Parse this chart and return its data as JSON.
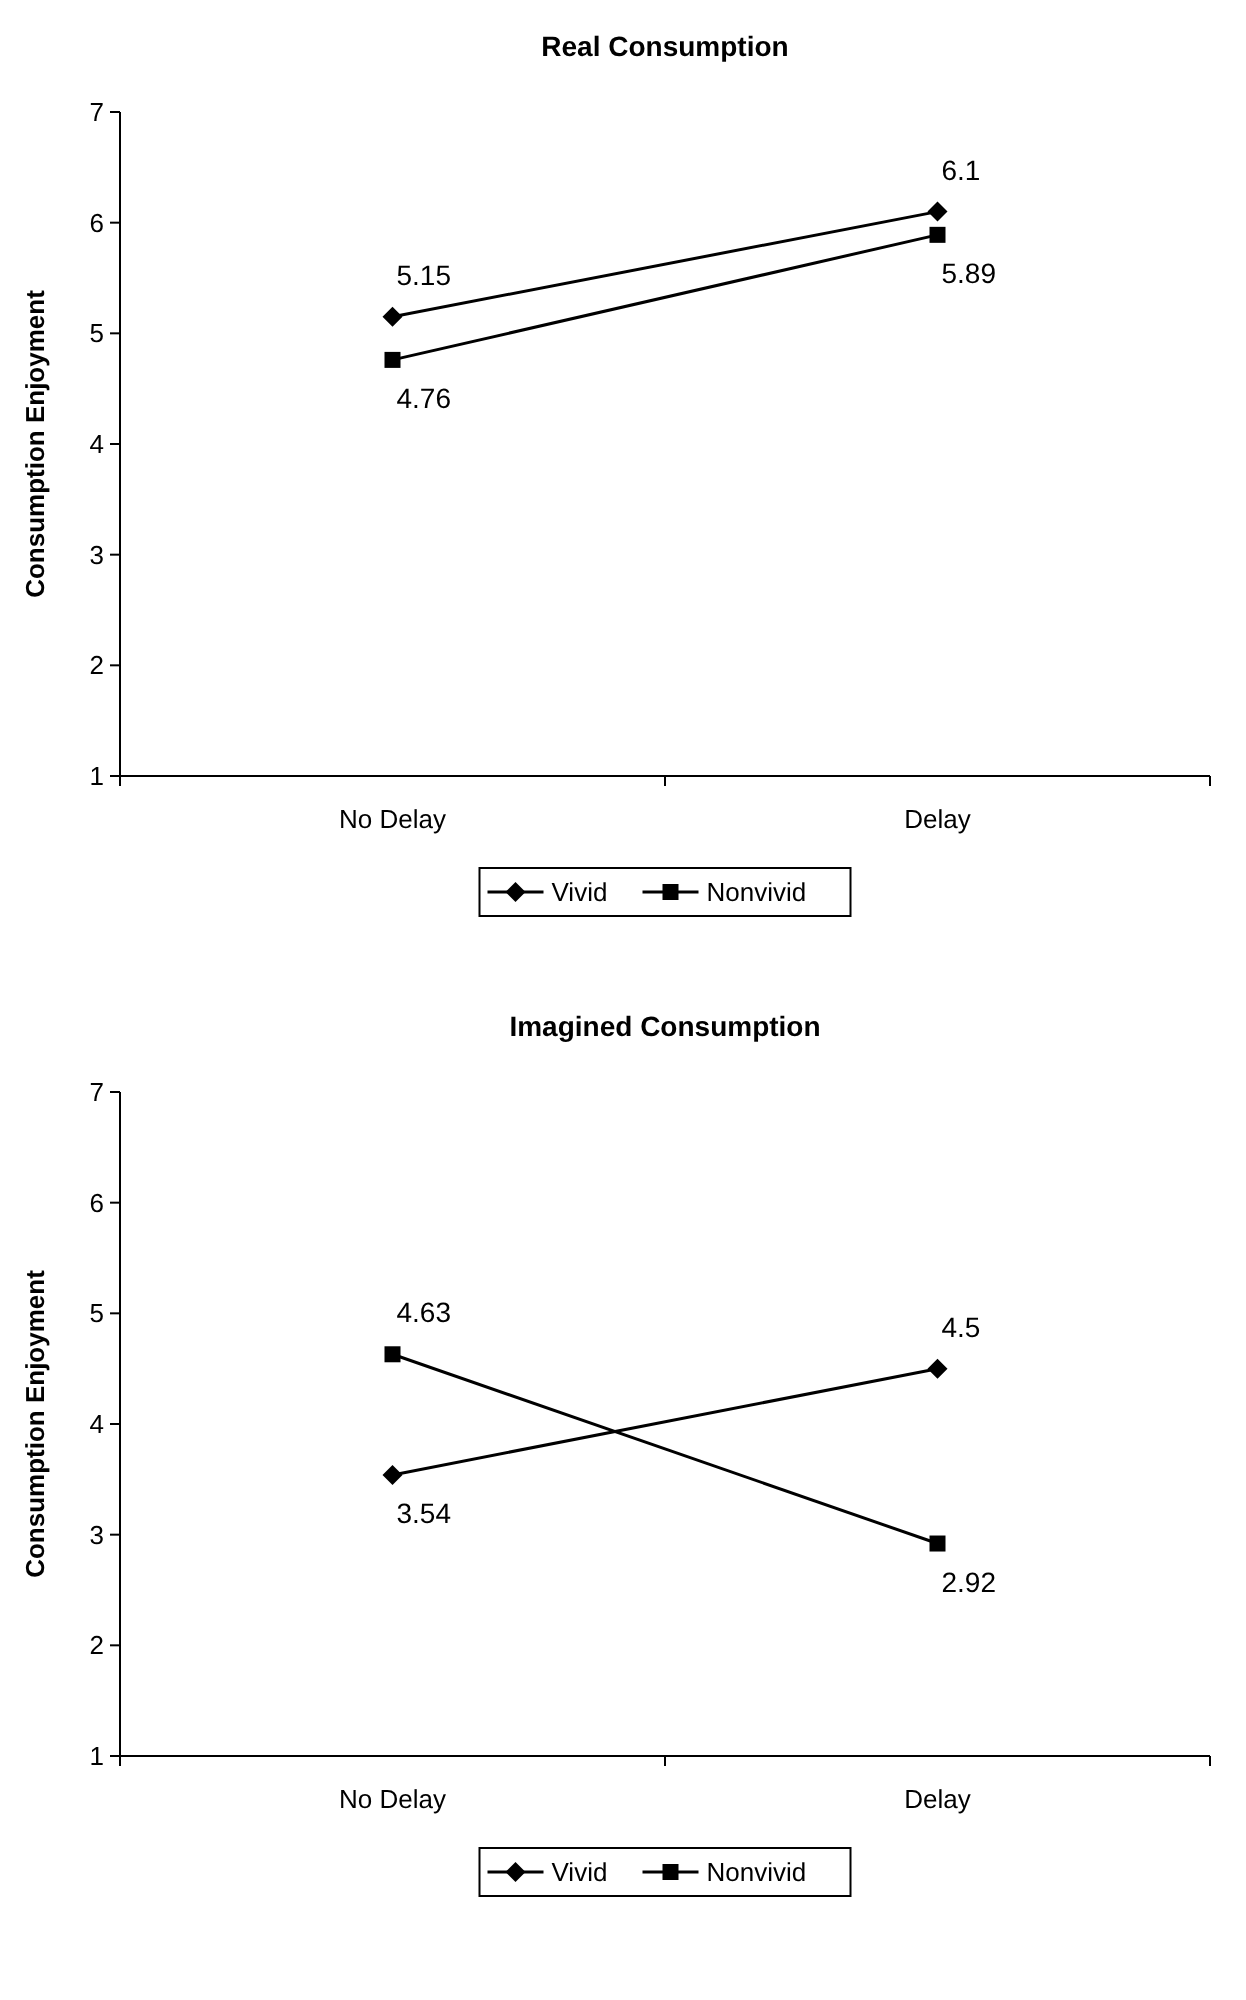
{
  "chart_data": [
    {
      "type": "line",
      "title": "Real Consumption",
      "ylabel": "Consumption Enjoyment",
      "categories": [
        "No Delay",
        "Delay"
      ],
      "ylim": [
        1,
        7
      ],
      "yticks": [
        1,
        2,
        3,
        4,
        5,
        6,
        7
      ],
      "grid": false,
      "legend": "bottom",
      "data_labels": true,
      "series": [
        {
          "name": "Vivid",
          "color": "#000000",
          "marker": "diamond",
          "values": [
            5.15,
            6.1
          ]
        },
        {
          "name": "Nonvivid",
          "color": "#000000",
          "marker": "square",
          "values": [
            4.76,
            5.89
          ]
        }
      ]
    },
    {
      "type": "line",
      "title": "Imagined Consumption",
      "ylabel": "Consumption Enjoyment",
      "categories": [
        "No Delay",
        "Delay"
      ],
      "ylim": [
        1,
        7
      ],
      "yticks": [
        1,
        2,
        3,
        4,
        5,
        6,
        7
      ],
      "grid": false,
      "legend": "bottom",
      "data_labels": true,
      "series": [
        {
          "name": "Vivid",
          "color": "#000000",
          "marker": "diamond",
          "values": [
            3.54,
            4.5
          ]
        },
        {
          "name": "Nonvivid",
          "color": "#000000",
          "marker": "square",
          "values": [
            4.63,
            2.92
          ]
        }
      ]
    }
  ]
}
